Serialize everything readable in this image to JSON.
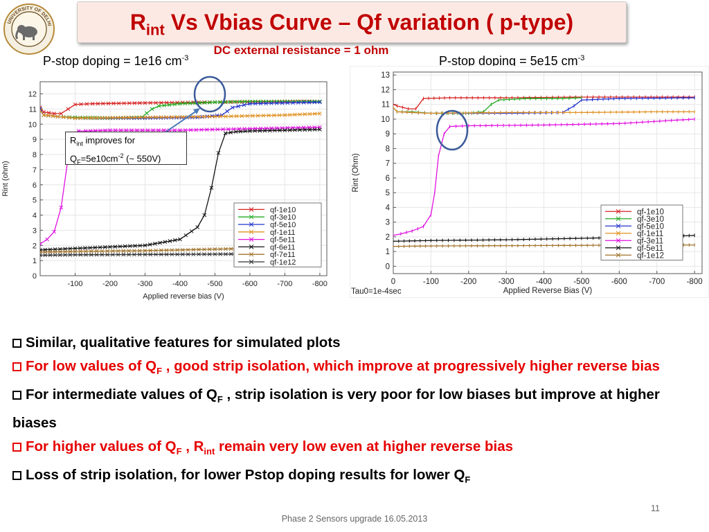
{
  "slide": {
    "title_main": "R",
    "title_sub": "int",
    "title_rest": " Vs Vbias Curve – Qf variation ( p-type)",
    "subtitle": "DC external resistance = 1 ohm",
    "left_plot_title": "P-stop doping = 1e16 cm",
    "left_plot_title_sup": "-3",
    "right_plot_title": "P-stop doping = 5e15 cm",
    "right_plot_title_sup": "-3",
    "callout": {
      "l1a": "R",
      "l1sub": "int",
      "l1b": " improves for",
      "l2a": "Q",
      "l2sub": "F",
      "l2b": "=5e10cm",
      "l2sup": "-2",
      "l2c": " (~ 550V)"
    },
    "bullets": [
      {
        "parts": [
          "Similar, qualitative features for simulated plots"
        ],
        "color": "#000000"
      },
      {
        "parts": [
          "For low values of Q",
          "F",
          " , good strip isolation, which improve at progressively higher reverse bias"
        ],
        "color": "#e60000"
      },
      {
        "parts": [
          "For intermediate values of Q",
          "F",
          " , strip isolation is very poor for low biases but improve at higher biases"
        ],
        "color": "#000000"
      },
      {
        "parts": [
          "For higher values of Q",
          "F",
          " , R",
          "int",
          " remain very low even at higher reverse bias"
        ],
        "color": "#e60000"
      },
      {
        "parts": [
          "Loss of strip isolation, for lower Pstop doping  results  for lower Q",
          "F"
        ],
        "color": "#000000"
      }
    ],
    "footer": "Phase 2 Sensors upgrade    16.05.2013",
    "page_number": "11",
    "logo_text": "UNIVERSITY OF DELHI"
  },
  "chart_data": [
    {
      "type": "line",
      "title": "",
      "xlabel": "Applied reverse bias (V)",
      "ylabel": "Rint (ohm)",
      "xlim": [
        0,
        -820
      ],
      "ylim": [
        0,
        12.8
      ],
      "x_ticks": [
        "-100",
        "-200",
        "-300",
        "-400",
        "-500",
        "-600",
        "-700",
        "-800"
      ],
      "y_ticks": [
        "0",
        "1",
        "2",
        "3",
        "4",
        "5",
        "6",
        "7",
        "8",
        "9",
        "10",
        "11",
        "12"
      ],
      "legend_position": "lower-right",
      "grid": true,
      "series": [
        {
          "name": "qf-1e10",
          "color": "#d62020",
          "x": [
            0,
            -10,
            -40,
            -60,
            -80,
            -100,
            -150,
            -300,
            -500,
            -700,
            -800
          ],
          "y": [
            11.1,
            10.8,
            10.7,
            10.7,
            11.0,
            11.3,
            11.35,
            11.4,
            11.45,
            11.5,
            11.5
          ]
        },
        {
          "name": "qf-3e10",
          "color": "#22aa22",
          "x": [
            0,
            -10,
            -50,
            -100,
            -200,
            -290,
            -320,
            -340,
            -400,
            -500,
            -600,
            -800
          ],
          "y": [
            11.0,
            10.6,
            10.5,
            10.45,
            10.4,
            10.45,
            11.0,
            11.2,
            11.35,
            11.45,
            11.5,
            11.5
          ]
        },
        {
          "name": "qf-5e10",
          "color": "#2233cc",
          "x": [
            0,
            -10,
            -50,
            -100,
            -300,
            -450,
            -520,
            -550,
            -600,
            -800
          ],
          "y": [
            11.0,
            10.6,
            10.5,
            10.4,
            10.4,
            10.45,
            10.6,
            11.1,
            11.35,
            11.45
          ]
        },
        {
          "name": "qf-1e11",
          "color": "#e09020",
          "x": [
            0,
            -10,
            -50,
            -100,
            -300,
            -500,
            -700,
            -800
          ],
          "y": [
            10.9,
            10.6,
            10.5,
            10.4,
            10.45,
            10.5,
            10.6,
            10.7
          ]
        },
        {
          "name": "qf-5e11",
          "color": "#e010e0",
          "x": [
            0,
            -20,
            -40,
            -60,
            -80,
            -95,
            -110,
            -130,
            -200,
            -400,
            -600,
            -800
          ],
          "y": [
            2.1,
            2.4,
            2.9,
            4.5,
            7.8,
            9.4,
            9.55,
            9.55,
            9.6,
            9.6,
            9.7,
            9.8
          ]
        },
        {
          "name": "qf-6e11",
          "color": "#111111",
          "x": [
            0,
            -100,
            -200,
            -300,
            -400,
            -450,
            -470,
            -490,
            -510,
            -530,
            -560,
            -600,
            -700,
            -800
          ],
          "y": [
            1.7,
            1.8,
            1.9,
            2.0,
            2.4,
            3.2,
            4.0,
            5.8,
            8.1,
            9.4,
            9.5,
            9.55,
            9.6,
            9.65
          ]
        },
        {
          "name": "qf-7e11",
          "color": "#a0722a",
          "x": [
            0,
            -100,
            -300,
            -500,
            -700,
            -800
          ],
          "y": [
            1.55,
            1.6,
            1.65,
            1.75,
            1.85,
            1.9
          ]
        },
        {
          "name": "qf-1e12",
          "color": "#333333",
          "x": [
            0,
            -100,
            -300,
            -500,
            -700,
            -800
          ],
          "y": [
            1.35,
            1.38,
            1.4,
            1.42,
            1.45,
            1.45
          ]
        }
      ]
    },
    {
      "type": "line",
      "title": "",
      "xlabel": "Applied Reverse Bias (V)",
      "ylabel": "Rint (Ohm)",
      "annotation": "Tau0=1e-4sec",
      "xlim": [
        0,
        -820
      ],
      "ylim": [
        -0.5,
        13.2
      ],
      "x_ticks": [
        "0",
        "-100",
        "-200",
        "-300",
        "-400",
        "-500",
        "-600",
        "-700",
        "-800"
      ],
      "y_ticks": [
        "0",
        "1",
        "2",
        "3",
        "4",
        "5",
        "6",
        "7",
        "8",
        "9",
        "10",
        "11",
        "12",
        "13"
      ],
      "legend_position": "lower-right",
      "grid": true,
      "series": [
        {
          "name": "qf-1e10",
          "color": "#d62020",
          "x": [
            0,
            -10,
            -40,
            -60,
            -80,
            -150,
            -300,
            -500,
            -700,
            -800
          ],
          "y": [
            11.0,
            10.9,
            10.7,
            10.7,
            11.4,
            11.45,
            11.45,
            11.5,
            11.5,
            11.5
          ]
        },
        {
          "name": "qf-3e10",
          "color": "#22aa22",
          "x": [
            0,
            -10,
            -50,
            -100,
            -200,
            -240,
            -260,
            -280,
            -350,
            -450,
            -500
          ],
          "y": [
            10.8,
            10.5,
            10.5,
            10.4,
            10.4,
            10.5,
            11.0,
            11.3,
            11.4,
            11.4,
            11.45
          ]
        },
        {
          "name": "qf-5e10",
          "color": "#2233cc",
          "x": [
            0,
            -10,
            -50,
            -100,
            -300,
            -450,
            -480,
            -500,
            -600,
            -800
          ],
          "y": [
            10.8,
            10.5,
            10.45,
            10.4,
            10.4,
            10.45,
            10.9,
            11.3,
            11.4,
            11.45
          ]
        },
        {
          "name": "qf-1e11",
          "color": "#e09020",
          "x": [
            0,
            -10,
            -50,
            -100,
            -300,
            -500,
            -700,
            -800
          ],
          "y": [
            10.8,
            10.5,
            10.45,
            10.4,
            10.45,
            10.45,
            10.5,
            10.5
          ]
        },
        {
          "name": "qf-3e11",
          "color": "#e010e0",
          "x": [
            0,
            -20,
            -50,
            -80,
            -100,
            -110,
            -120,
            -135,
            -150,
            -200,
            -400,
            -600,
            -800
          ],
          "y": [
            2.1,
            2.2,
            2.4,
            2.7,
            3.5,
            5.0,
            7.5,
            9.0,
            9.5,
            9.55,
            9.6,
            9.7,
            10.0
          ]
        },
        {
          "name": "qf-5e11",
          "color": "#111111",
          "x": [
            0,
            -100,
            -300,
            -500,
            -700,
            -800
          ],
          "y": [
            1.7,
            1.75,
            1.8,
            1.9,
            2.0,
            2.1
          ]
        },
        {
          "name": "qf-1e12",
          "color": "#a0722a",
          "x": [
            0,
            -100,
            -300,
            -500,
            -700,
            -800
          ],
          "y": [
            1.35,
            1.38,
            1.4,
            1.42,
            1.45,
            1.45
          ]
        }
      ]
    }
  ]
}
